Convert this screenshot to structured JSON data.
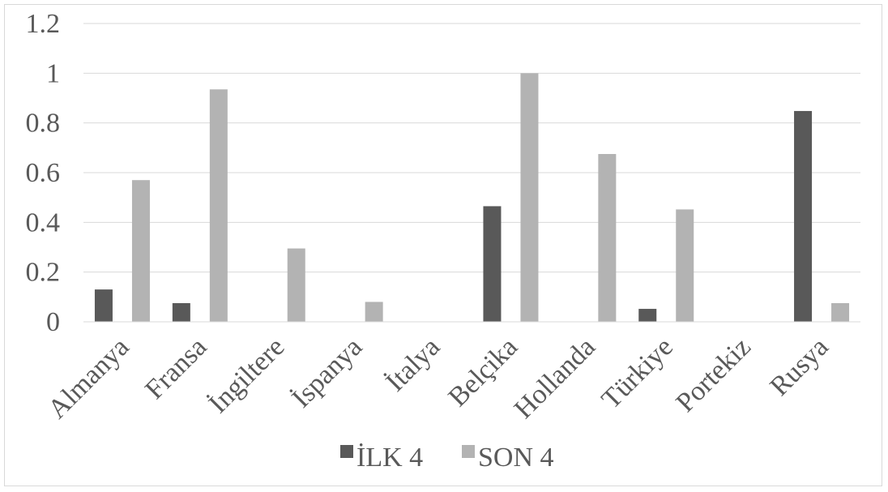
{
  "chart_data": {
    "type": "bar",
    "categories": [
      "Almanya",
      "Fransa",
      "İngiltere",
      "İspanya",
      "İtalya",
      "Belçika",
      "Hollanda",
      "Türkiye",
      "Portekiz",
      "Rusya"
    ],
    "series": [
      {
        "name": "İLK 4",
        "color": "#595959",
        "values": [
          0.13,
          0.075,
          0,
          0,
          0,
          0.465,
          0,
          0.052,
          0,
          0.848
        ]
      },
      {
        "name": "SON 4",
        "color": "#b3b3b3",
        "values": [
          0.57,
          0.935,
          0.295,
          0.08,
          0,
          1.0,
          0.675,
          0.452,
          0,
          0.075
        ]
      }
    ],
    "yticks": [
      "0",
      "0.2",
      "0.4",
      "0.6",
      "0.8",
      "1",
      "1.2"
    ],
    "ylim": [
      0,
      1.2
    ],
    "grid": true,
    "legend_position": "bottom"
  }
}
